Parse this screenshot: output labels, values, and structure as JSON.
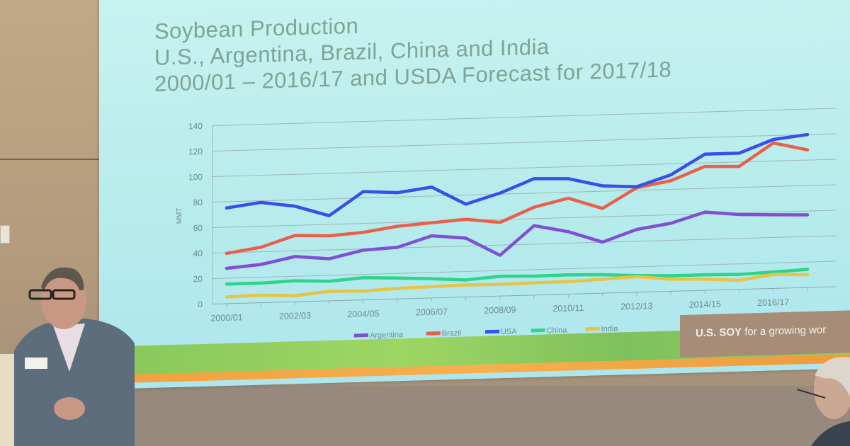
{
  "slide": {
    "title_lines": [
      "Soybean Production",
      "U.S., Argentina, Brazil, China and India",
      "2000/01 – 2016/17 and USDA Forecast for 2017/18"
    ],
    "brand": {
      "bold": "U.S. SOY",
      "rest": " for a growing wor"
    }
  },
  "chart_data": {
    "type": "line",
    "title": "Soybean Production U.S., Argentina, Brazil, China and India 2000/01 – 2016/17 and USDA Forecast for 2017/18",
    "xlabel": "",
    "ylabel": "MMT",
    "ylim": [
      0,
      140
    ],
    "yticks": [
      0,
      20,
      40,
      60,
      80,
      100,
      120,
      140
    ],
    "grid": true,
    "legend_position": "bottom",
    "x": [
      "2000/01",
      "2001/02",
      "2002/03",
      "2003/04",
      "2004/05",
      "2005/06",
      "2006/07",
      "2007/08",
      "2008/09",
      "2009/10",
      "2010/11",
      "2011/12",
      "2012/13",
      "2013/14",
      "2014/15",
      "2015/16",
      "2016/17",
      "2017/18"
    ],
    "xtick_labels": [
      "2000/01",
      "2002/03",
      "2004/05",
      "2006/07",
      "2008/09",
      "2010/11",
      "2012/13",
      "2014/15",
      "2016/17"
    ],
    "series": [
      {
        "name": "Argentina",
        "color": "#7f4fd4",
        "values": [
          27.8,
          30.0,
          35.5,
          33.0,
          39.0,
          40.5,
          48.8,
          46.2,
          32.0,
          54.5,
          49.0,
          40.1,
          49.3,
          53.4,
          61.4,
          58.8,
          57.8,
          57.0
        ]
      },
      {
        "name": "Brazil",
        "color": "#e8604c",
        "values": [
          39.5,
          43.5,
          52.0,
          51.0,
          53.0,
          57.0,
          59.0,
          61.0,
          57.8,
          69.0,
          75.3,
          66.5,
          82.0,
          86.7,
          97.2,
          96.5,
          114.1,
          108.0
        ]
      },
      {
        "name": "USA",
        "color": "#3a4ee8",
        "values": [
          75.1,
          78.7,
          75.0,
          66.8,
          85.0,
          83.4,
          87.0,
          72.9,
          80.8,
          91.4,
          90.6,
          84.2,
          82.8,
          91.4,
          106.9,
          106.9,
          116.9,
          120.0
        ]
      },
      {
        "name": "China",
        "color": "#2fd48c",
        "values": [
          15.4,
          15.4,
          16.5,
          15.4,
          17.4,
          16.4,
          15.1,
          13.4,
          15.5,
          14.9,
          15.1,
          14.5,
          13.1,
          12.2,
          12.2,
          11.8,
          12.9,
          14.2
        ]
      },
      {
        "name": "India",
        "color": "#e6c446",
        "values": [
          5.3,
          6.0,
          4.7,
          7.5,
          6.9,
          8.3,
          8.9,
          9.5,
          9.1,
          9.7,
          9.8,
          11.0,
          12.2,
          9.5,
          8.7,
          7.1,
          11.0,
          10.0
        ]
      }
    ]
  }
}
